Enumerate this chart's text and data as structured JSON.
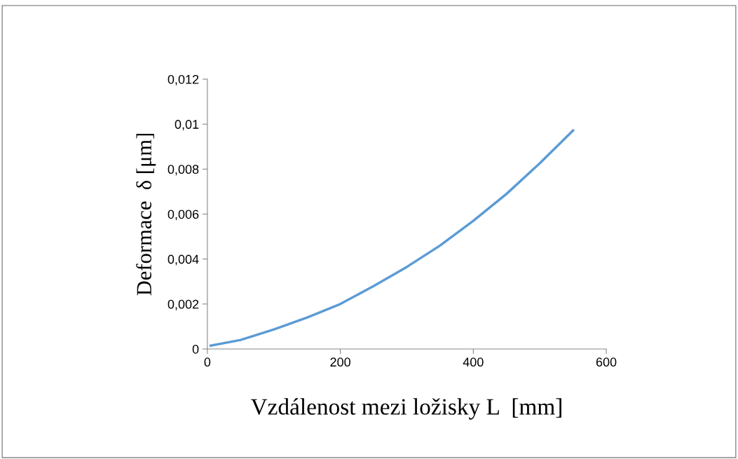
{
  "chart_data": {
    "type": "line",
    "xlabel": "Vzdálenost mezi ložisky L  [mm]",
    "ylabel": "Deformace  δ [μm]",
    "x": [
      5,
      50,
      100,
      150,
      200,
      250,
      300,
      350,
      400,
      450,
      500,
      550
    ],
    "series": [
      {
        "color": "#5b9bd5",
        "values": [
          0.00015,
          0.0004,
          0.00087,
          0.0014,
          0.002,
          0.0028,
          0.00365,
          0.0046,
          0.0057,
          0.0069,
          0.00826,
          0.00972
        ]
      }
    ],
    "xlim": [
      0,
      600
    ],
    "xticks": [
      0,
      200,
      400,
      600
    ],
    "ylim": [
      0,
      0.012
    ],
    "yticks": [
      0,
      {
        "value": 0.002,
        "label": "0,002"
      },
      {
        "value": 0.004,
        "label": "0,004"
      },
      {
        "value": 0.006,
        "label": "0,006"
      },
      {
        "value": 0.008,
        "label": "0,008"
      },
      {
        "value": 0.01,
        "label": "0,01"
      },
      {
        "value": 0.012,
        "label": "0,012"
      }
    ],
    "grid": false,
    "legend": false,
    "marker": "none",
    "line_style": "solid"
  }
}
